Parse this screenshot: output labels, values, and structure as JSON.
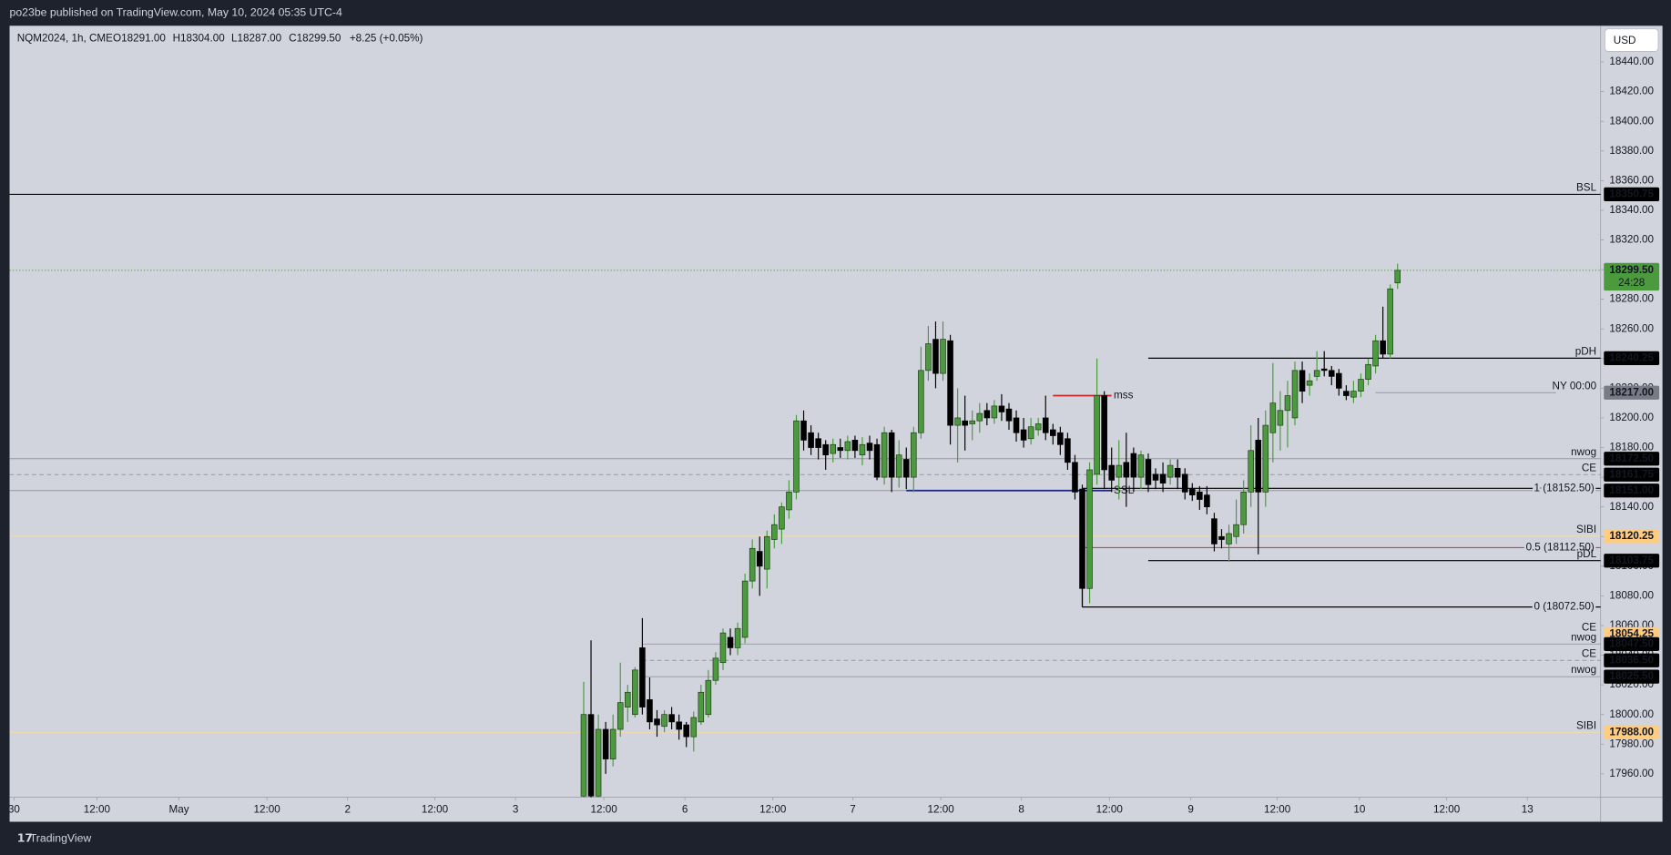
{
  "header": {
    "publisher": "po23be published on TradingView.com, May 10, 2024 05:35 UTC-4",
    "legend": {
      "symbol": "NQM2024, 1h, CME",
      "open": "O18291.00",
      "high": "H18304.00",
      "low": "L18287.00",
      "close": "C18299.50",
      "change": "+8.25 (+0.05%)"
    },
    "currency": "USD"
  },
  "footer": {
    "brand": "TradingView"
  },
  "chart_data": {
    "type": "candlestick",
    "x": [
      0,
      1,
      2,
      3,
      4,
      5,
      6,
      7,
      8,
      9,
      10,
      11,
      12,
      13,
      14,
      15,
      16,
      17,
      18,
      19,
      20,
      21,
      22,
      23,
      24,
      25,
      26,
      27,
      28,
      29,
      30,
      31,
      32,
      33,
      34,
      35,
      36,
      37,
      38,
      39,
      40,
      41,
      42,
      43,
      44,
      45,
      46,
      47,
      48,
      49,
      50,
      51,
      52,
      53,
      54,
      55,
      56,
      57,
      58,
      59,
      60,
      61,
      62,
      63,
      64,
      65,
      66,
      67,
      68,
      69,
      70,
      71,
      72,
      73,
      74,
      75,
      76,
      77,
      78,
      79,
      80,
      81,
      82,
      83,
      84,
      85,
      86,
      87,
      88,
      89,
      90,
      91,
      92,
      93,
      94,
      95,
      96,
      97,
      98,
      99,
      100,
      101,
      102,
      103,
      104,
      105,
      106,
      107,
      108,
      109,
      110,
      111
    ],
    "open": [
      17945,
      18000,
      17945,
      17990,
      17970,
      17990,
      18005,
      18000,
      18045,
      18010,
      17997,
      17992,
      18000,
      17995,
      17993,
      17985,
      17995,
      18000,
      18023,
      18035,
      18052,
      18045,
      18052,
      18090,
      18110,
      18098,
      18118,
      18125,
      18138,
      18150,
      18198,
      18190,
      18186,
      18182,
      18176,
      18180,
      18178,
      18185,
      18175,
      18183,
      18182,
      18160,
      18190,
      18160,
      18172,
      18160,
      18190,
      18232,
      18253,
      18230,
      18252,
      18195,
      18198,
      18196,
      18198,
      18205,
      18200,
      18208,
      18206,
      18200,
      18192,
      18186,
      18192,
      18200,
      18192,
      18190,
      18186,
      18170,
      18152,
      18085,
      18162,
      18215,
      18168,
      18160,
      18170,
      18176,
      18160,
      18172,
      18162,
      18162,
      18160,
      18166,
      18162,
      18152,
      18150,
      18148,
      18132,
      18120,
      18115,
      18120,
      18128,
      18150,
      18185,
      18150,
      18190,
      18195,
      18205,
      18200,
      18232,
      18222,
      18228,
      18233,
      18232,
      18230,
      18218,
      18214,
      18218,
      18226,
      18235,
      18252,
      18243,
      18291
    ],
    "high": [
      18022,
      18050,
      18000,
      17995,
      18000,
      18035,
      18020,
      18032,
      18065,
      18025,
      18003,
      18003,
      18005,
      18000,
      17995,
      18002,
      18020,
      18030,
      18042,
      18058,
      18058,
      18062,
      18095,
      18118,
      18120,
      18124,
      18135,
      18143,
      18158,
      18202,
      18205,
      18195,
      18190,
      18185,
      18186,
      18186,
      18188,
      18188,
      18187,
      18188,
      18186,
      18194,
      18192,
      18185,
      18180,
      18194,
      18248,
      18262,
      18265,
      18265,
      18256,
      18220,
      18215,
      18205,
      18210,
      18210,
      18212,
      18216,
      18210,
      18205,
      18200,
      18200,
      18200,
      18215,
      18196,
      18194,
      18190,
      18175,
      18155,
      18170,
      18240,
      18218,
      18180,
      18185,
      18190,
      18180,
      18178,
      18176,
      18166,
      18170,
      18172,
      18172,
      18166,
      18156,
      18154,
      18154,
      18136,
      18125,
      18128,
      18145,
      18158,
      18195,
      18200,
      18205,
      18237,
      18218,
      18225,
      18238,
      18238,
      18230,
      18245,
      18245,
      18235,
      18233,
      18222,
      18225,
      18230,
      18240,
      18256,
      18275,
      18290,
      18304
    ],
    "low": [
      17935,
      17935,
      17935,
      17960,
      17965,
      17985,
      17995,
      17998,
      18000,
      17990,
      17985,
      17988,
      17990,
      17983,
      17978,
      17975,
      17993,
      17998,
      18020,
      18030,
      18040,
      18040,
      18048,
      18085,
      18080,
      18085,
      18112,
      18115,
      18132,
      18145,
      18178,
      18175,
      18172,
      18165,
      18170,
      18173,
      18172,
      18173,
      18168,
      18172,
      18158,
      18155,
      18150,
      18153,
      18152,
      18150,
      18186,
      18225,
      18220,
      18225,
      18182,
      18170,
      18178,
      18185,
      18190,
      18195,
      18196,
      18198,
      18192,
      18184,
      18180,
      18182,
      18188,
      18185,
      18182,
      18175,
      18165,
      18145,
      18072.5,
      18075,
      18155,
      18152,
      18150,
      18145,
      18140,
      18150,
      18152,
      18150,
      18152,
      18150,
      18155,
      18152,
      18145,
      18144,
      18138,
      18135,
      18110,
      18112,
      18103,
      18115,
      18122,
      18140,
      18108,
      18140,
      18170,
      18178,
      18180,
      18195,
      18210,
      18215,
      18225,
      18228,
      18222,
      18215,
      18212,
      18210,
      18214,
      18222,
      18230,
      18240,
      18240,
      18287
    ],
    "close": [
      18000,
      17945,
      17990,
      17970,
      17990,
      18008,
      18015,
      18030,
      18005,
      17995,
      17993,
      18000,
      17995,
      17990,
      17985,
      17998,
      18015,
      18023,
      18038,
      18055,
      18045,
      18058,
      18090,
      18112,
      18100,
      18120,
      18128,
      18140,
      18150,
      18198,
      18185,
      18180,
      18180,
      18175,
      18182,
      18178,
      18184,
      18178,
      18182,
      18178,
      18160,
      18190,
      18160,
      18175,
      18160,
      18190,
      18232,
      18250,
      18230,
      18253,
      18195,
      18200,
      18195,
      18198,
      18203,
      18200,
      18208,
      18204,
      18198,
      18190,
      18185,
      18194,
      18196,
      18190,
      18188,
      18182,
      18170,
      18150,
      18085,
      18165,
      18215,
      18165,
      18158,
      18168,
      18160,
      18160,
      18175,
      18155,
      18158,
      18156,
      18168,
      18160,
      18150,
      18148,
      18145,
      18140,
      18115,
      18118,
      18122,
      18128,
      18150,
      18178,
      18150,
      18195,
      18210,
      18205,
      18215,
      18232,
      18218,
      18225,
      18232,
      18232,
      18228,
      18220,
      18215,
      18218,
      18226,
      18236,
      18252,
      18243,
      18287,
      18299.5
    ],
    "up_color": "#4c9a3e",
    "down_color": "#000000",
    "xlim": [
      -78.3,
      138.7
    ],
    "xticks": [
      {
        "value": -77.7,
        "label": "30"
      },
      {
        "value": -66.4,
        "label": "12:00"
      },
      {
        "value": -55.2,
        "label": "May"
      },
      {
        "value": -43.2,
        "label": "12:00"
      },
      {
        "value": -32.2,
        "label": "2"
      },
      {
        "value": -20.3,
        "label": "12:00"
      },
      {
        "value": -9.3,
        "label": "3"
      },
      {
        "value": 2.75,
        "label": "12:00"
      },
      {
        "value": 13.8,
        "label": "6"
      },
      {
        "value": 25.8,
        "label": "12:00"
      },
      {
        "value": 36.7,
        "label": "7"
      },
      {
        "value": 48.7,
        "label": "12:00"
      },
      {
        "value": 59.7,
        "label": "8"
      },
      {
        "value": 71.7,
        "label": "12:00"
      },
      {
        "value": 82.8,
        "label": "9"
      },
      {
        "value": 94.6,
        "label": "12:00"
      },
      {
        "value": 105.8,
        "label": "10"
      },
      {
        "value": 117.7,
        "label": "12:00"
      },
      {
        "value": 128.7,
        "label": "13"
      }
    ],
    "ylim": [
      17944.2,
      18464.4
    ],
    "yticks": [
      {
        "value": 18440,
        "label": "18440.00"
      },
      {
        "value": 18420,
        "label": "18420.00"
      },
      {
        "value": 18400,
        "label": "18400.00"
      },
      {
        "value": 18380,
        "label": "18380.00"
      },
      {
        "value": 18360,
        "label": "18360.00"
      },
      {
        "value": 18340,
        "label": "18340.00"
      },
      {
        "value": 18320,
        "label": "18320.00"
      },
      {
        "value": 18300,
        "label": "18300.00"
      },
      {
        "value": 18280,
        "label": "18280.00"
      },
      {
        "value": 18260,
        "label": "18260.00"
      },
      {
        "value": 18240,
        "label": "18240.00"
      },
      {
        "value": 18220,
        "label": "18220.00"
      },
      {
        "value": 18200,
        "label": "18200.00"
      },
      {
        "value": 18180,
        "label": "18180.00"
      },
      {
        "value": 18160,
        "label": "18160.00"
      },
      {
        "value": 18140,
        "label": "18140.00"
      },
      {
        "value": 18120,
        "label": "18120.00"
      },
      {
        "value": 18100,
        "label": "18100.00"
      },
      {
        "value": 18080,
        "label": "18080.00"
      },
      {
        "value": 18060,
        "label": "18060.00"
      },
      {
        "value": 18040,
        "label": "18040.00"
      },
      {
        "value": 18020,
        "label": "18020.00"
      },
      {
        "value": 18000,
        "label": "18000.00"
      },
      {
        "value": 17980,
        "label": "17980.00"
      },
      {
        "value": 17960,
        "label": "17960.00"
      }
    ],
    "levels": [
      {
        "tag": "BSL",
        "value": 18350.75,
        "label": "18350.75",
        "line": "#000000",
        "style": "solid",
        "badge": "#000000",
        "tag_color": "#131722"
      },
      {
        "value": 18299.5,
        "label": "18299.50",
        "countdown": "24:28",
        "line": "#4c9a3e",
        "style": "dotted",
        "badge": "#4c9a3e"
      },
      {
        "tag": "pDH",
        "value": 18240.25,
        "label": "18240.25",
        "start": 77,
        "line": "#000000",
        "style": "solid",
        "badge": "#000000",
        "tag_color": "#131722"
      },
      {
        "tag": "NY 00:00",
        "value": 18217,
        "label": "18217.00",
        "start": 108,
        "end": 132.6,
        "line": "#9598a1",
        "style": "solid",
        "badge": "#787b86",
        "tag_color": "#5b8fd6"
      },
      {
        "tag": "nwog",
        "value": 18172.5,
        "label": "18172.50",
        "line": "#9598a1",
        "style": "solid",
        "badge": "#000000",
        "tag_color": "#787b86"
      },
      {
        "tag": "CE",
        "value": 18161.75,
        "label": "18161.75",
        "line": "#9598a1",
        "style": "dashed",
        "badge": "#000000",
        "tag_color": "#787b86"
      },
      {
        "value": 18151,
        "label": "18151.00",
        "line": "#9598a1",
        "style": "solid",
        "badge": "#000000"
      },
      {
        "tag": "SIBI",
        "value": 18120.25,
        "label": "18120.25",
        "line": "#f5d9a8",
        "style": "solid",
        "badge": "#ffcc80",
        "tag_color": "#66bb6a"
      },
      {
        "tag": "pDL",
        "value": 18103.75,
        "label": "18103.75",
        "start": 77,
        "line": "#000000",
        "style": "solid",
        "badge": "#000000",
        "tag_color": "#131722"
      },
      {
        "tag": "CE",
        "value": 18054.25,
        "label": "18054.25",
        "line": "none",
        "style": "solid",
        "badge": "#ffcc80",
        "tag_color": "#66bb6a"
      },
      {
        "tag": "nwog",
        "value": 18047.5,
        "label": "18047.50",
        "start": 8,
        "line": "#9598a1",
        "style": "solid",
        "badge": "#000000",
        "tag_color": "#787b86"
      },
      {
        "tag": "CE",
        "value": 18036.5,
        "label": "18036.50",
        "start": 8,
        "line": "#9598a1",
        "style": "dashed",
        "badge": "#000000",
        "tag_color": "#787b86"
      },
      {
        "tag": "nwog",
        "value": 18025.5,
        "label": "18025.50",
        "start": 8,
        "line": "#9598a1",
        "style": "solid",
        "badge": "#000000",
        "tag_color": "#787b86"
      },
      {
        "tag": "SIBI",
        "value": 17988,
        "label": "17988.00",
        "line": "#f5d9a8",
        "style": "solid",
        "badge": "#ffcc80",
        "tag_color": "#66bb6a"
      }
    ],
    "fib": {
      "start": 68,
      "levels": [
        {
          "value": 18152.5,
          "label": "1 (18152.50)",
          "color": "#000000"
        },
        {
          "value": 18112.5,
          "label": "0.5 (18112.50)",
          "color": "#e53935"
        },
        {
          "value": 18072.5,
          "label": "0 (18072.50)",
          "color": "#000000"
        }
      ]
    },
    "segments": [
      {
        "text": "SSL",
        "value": 18151,
        "start": 44,
        "end": 72,
        "color": "#1a237e"
      },
      {
        "text": "mss",
        "value": 18215,
        "start": 64,
        "end": 72,
        "color": "#c62828"
      }
    ]
  }
}
